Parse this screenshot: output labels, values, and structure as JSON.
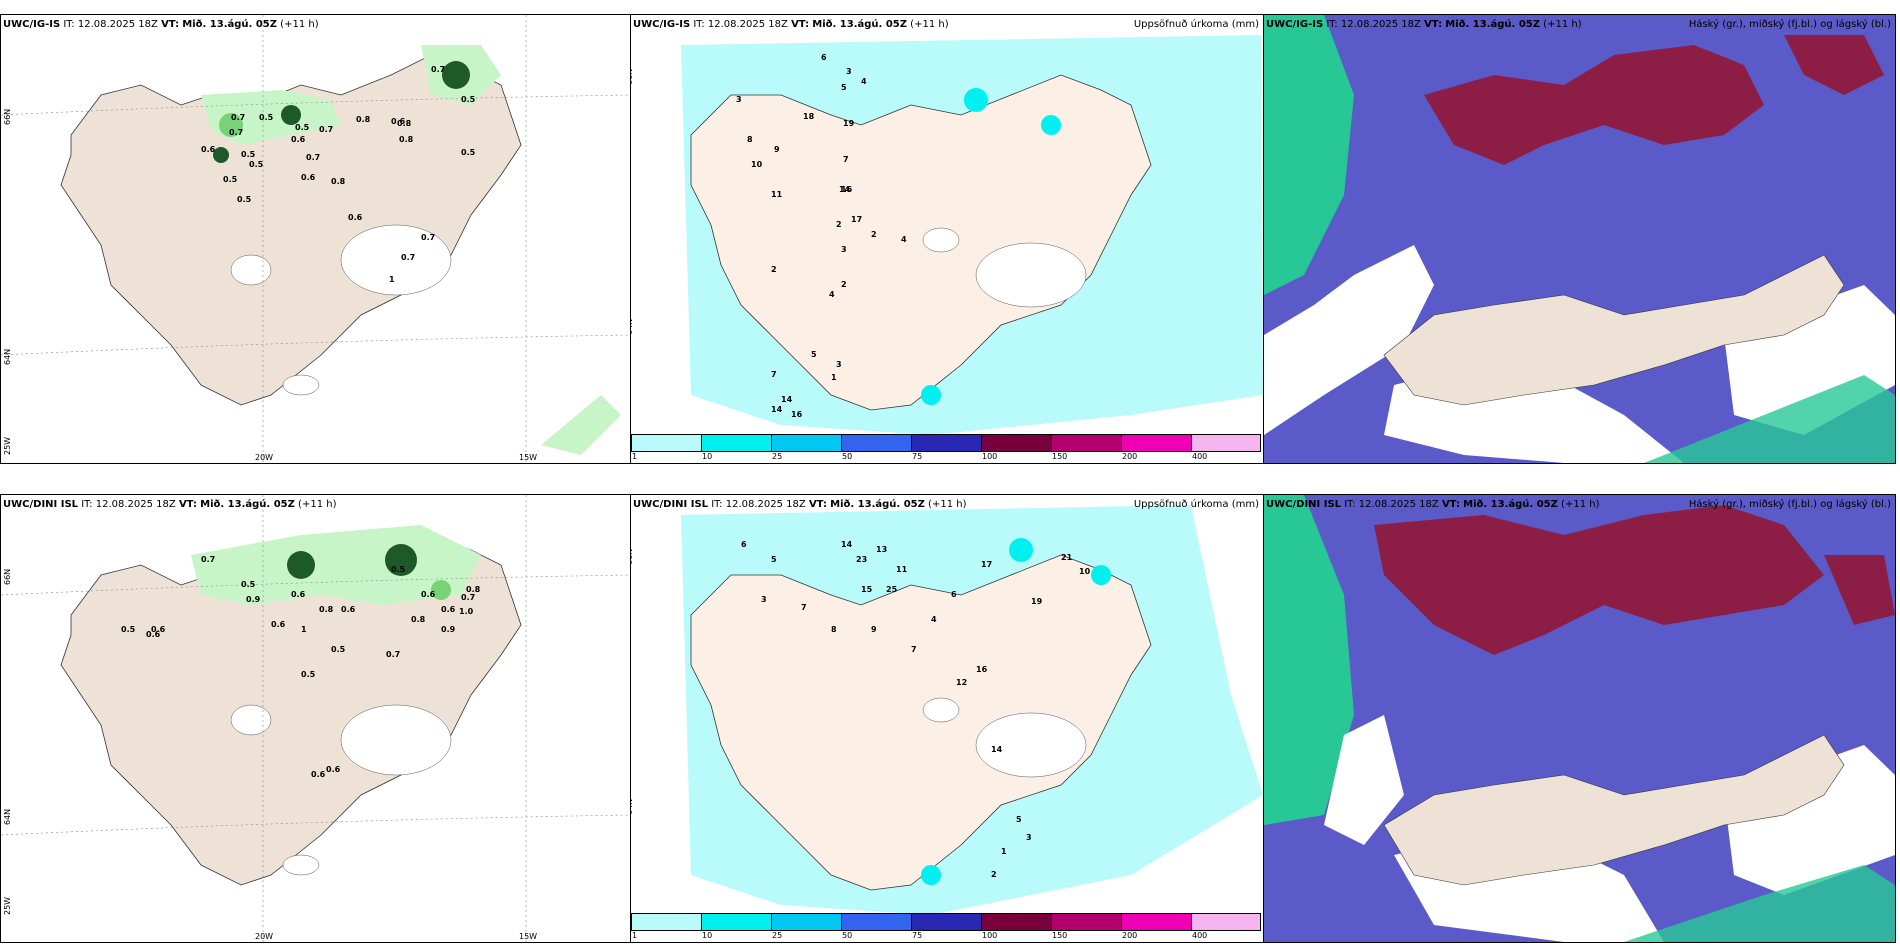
{
  "rows": [
    {
      "model": "UWC/IG-IS",
      "it_label": "IT:",
      "it_value": "12.08.2025 18Z",
      "vt_label": "VT:",
      "vt_value": "Mið. 13.ágú. 05Z",
      "lead": "(+11 h)"
    },
    {
      "model": "UWC/DINI ISL",
      "it_label": "IT:",
      "it_value": "12.08.2025 18Z",
      "vt_label": "VT:",
      "vt_value": "Mið. 13.ágú. 05Z",
      "lead": "(+11 h)"
    }
  ],
  "precip_title": "Uppsöfnuð úrkoma (mm)",
  "cloud_title": "Háský (gr.), miðský (fj.bl.) og lágský (bl.)",
  "axis_labels": {
    "lat_66": "66N",
    "lat_64": "64N",
    "lon_25": "25W",
    "lon_20": "20W",
    "lon_15": "15W"
  },
  "colorbar": {
    "ticks": [
      "1",
      "10",
      "25",
      "50",
      "75",
      "100",
      "150",
      "200",
      "400"
    ],
    "colors": [
      "#b9fbfb",
      "#00f0f0",
      "#00c8f0",
      "#3264f0",
      "#2828b4",
      "#78003c",
      "#b4006e",
      "#f000b4",
      "#f5b4f0"
    ]
  },
  "colors": {
    "land": "#eee2d6",
    "precip_light": "#c8f5c8",
    "precip_mid": "#78d278",
    "precip_dark": "#1e5a28",
    "high_cloud": "#5a5ac8",
    "mid_cloud": "#8c1e46",
    "low_cloud": "#28c896"
  },
  "panel_values": {
    "p1": [
      "0.7",
      "0.5",
      "0.7",
      "0.5",
      "0.7",
      "0.6",
      "0.7",
      "0.8",
      "0.6",
      "0.6",
      "0.8",
      "0.5",
      "0.5",
      "0.5",
      "0.5",
      "0.7",
      "0.6",
      "0.6",
      "0.7",
      "1",
      "0.5",
      "0.8",
      "0.8",
      "0.7",
      "0.5"
    ],
    "p2": [
      "6",
      "3",
      "3",
      "4",
      "5",
      "7",
      "9",
      "18",
      "19",
      "16",
      "17",
      "10",
      "8",
      "11",
      "14",
      "2",
      "3",
      "2",
      "4",
      "14",
      "7",
      "5",
      "16",
      "14",
      "3",
      "1",
      "2",
      "4",
      "2"
    ],
    "p4": [
      "0.7",
      "0.5",
      "0.9",
      "0.6",
      "0.8",
      "0.6",
      "0.5",
      "0.6",
      "0.6",
      "1",
      "0.5",
      "0.9",
      "0.8",
      "0.5",
      "0.6",
      "0.6",
      "0.7",
      "0.6",
      "1.0",
      "0.8",
      "0.5",
      "0.6",
      "0.6",
      "0.7"
    ],
    "p5": [
      "6",
      "5",
      "14",
      "13",
      "23",
      "11",
      "15",
      "25",
      "17",
      "21",
      "10",
      "19",
      "3",
      "7",
      "8",
      "9",
      "4",
      "6",
      "7",
      "12",
      "16",
      "14",
      "2",
      "1",
      "5",
      "3"
    ]
  }
}
